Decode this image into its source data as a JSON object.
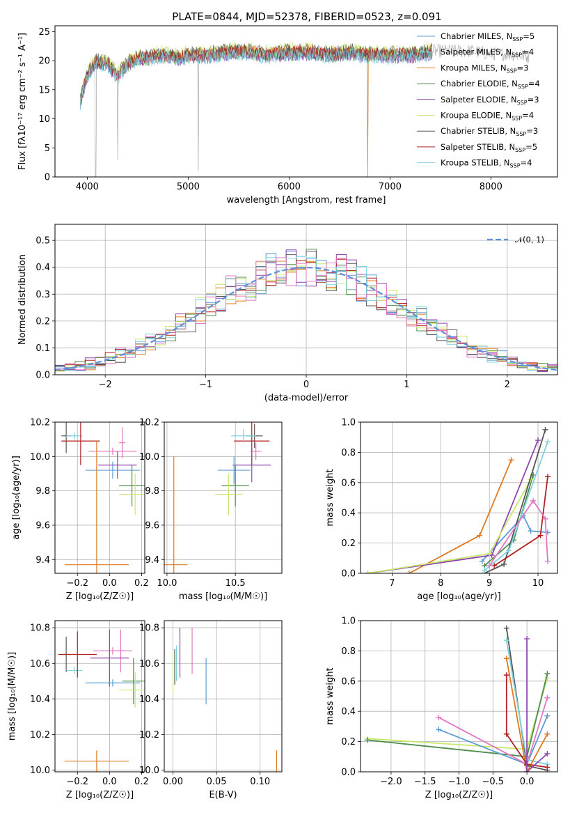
{
  "figure": {
    "title": "PLATE=0844, MJD=52378, FIBERID=0523, z=0.091"
  },
  "colors": [
    "#5b9bd5",
    "#e07a1f",
    "#4c8c4c",
    "#8e44ad",
    "#c7e86a",
    "#555555",
    "#b22222",
    "#7fd3de",
    "#e377c2"
  ],
  "charts": {
    "spectrum": {
      "type": "line",
      "xlabel": "wavelength [Angstrom, rest frame]",
      "ylabel": "Flux [fλ10⁻¹⁷ erg cm⁻² s⁻¹ A⁻¹]",
      "xlim": [
        3680,
        8660
      ],
      "ylim": [
        0,
        26
      ],
      "xticks": [
        4000,
        5000,
        6000,
        7000,
        8000
      ],
      "yticks": [
        0,
        5,
        10,
        15,
        20,
        25
      ],
      "grid": false,
      "legend": "upper-right",
      "data_x": [
        3930,
        3960,
        4000,
        4050,
        4100,
        4200,
        4300,
        4400,
        4500,
        4600,
        4700,
        4800,
        4900,
        5000,
        5200,
        5400,
        5600,
        5800,
        6000,
        6200,
        6400,
        6600,
        6800,
        7000,
        7200,
        7400,
        7600,
        7800,
        8000,
        8200,
        8400
      ],
      "data_y": [
        13,
        15,
        17.5,
        19,
        20,
        19.5,
        17.5,
        19.5,
        20.5,
        20.5,
        21,
        21,
        20.5,
        21,
        21,
        21.5,
        21.5,
        21,
        21.5,
        21.5,
        21,
        21.5,
        21,
        21,
        21,
        21.5,
        21.5,
        21.5,
        21,
        21,
        20.5
      ],
      "legend_entries": [
        {
          "label": "Chabrier MILES, N",
          "sub": "SSP",
          "suffix": "=5",
          "color": "#5b9bd5"
        },
        {
          "label": "Salpeter MILES, N",
          "sub": "SSP",
          "suffix": "=4",
          "color": "#7fd3de"
        },
        {
          "label": "Kroupa MILES, N",
          "sub": "SSP",
          "suffix": "=3",
          "color": "#e07a1f"
        },
        {
          "label": "Chabrier ELODIE, N",
          "sub": "SSP",
          "suffix": "=4",
          "color": "#4c8c4c"
        },
        {
          "label": "Salpeter ELODIE, N",
          "sub": "SSP",
          "suffix": "=3",
          "color": "#8e44ad"
        },
        {
          "label": "Kroupa ELODIE, N",
          "sub": "SSP",
          "suffix": "=4",
          "color": "#c7e86a"
        },
        {
          "label": "Chabrier STELIB, N",
          "sub": "SSP",
          "suffix": "=3",
          "color": "#555555"
        },
        {
          "label": "Salpeter STELIB, N",
          "sub": "SSP",
          "suffix": "=5",
          "color": "#b22222"
        },
        {
          "label": "Kroupa STELIB, N",
          "sub": "SSP",
          "suffix": "=4",
          "color": "#7fd3de"
        }
      ]
    },
    "residuals": {
      "type": "step-histogram",
      "xlabel": "(data-model)/error",
      "ylabel": "Normed distribution",
      "xlim": [
        -2.5,
        2.5
      ],
      "ylim": [
        0,
        0.56
      ],
      "xticks": [
        -2,
        -1,
        0,
        1,
        2
      ],
      "xtick_labels": [
        "−2",
        "−1",
        "0",
        "1",
        "2"
      ],
      "yticks": [
        0,
        0.1,
        0.2,
        0.3,
        0.4,
        0.5
      ],
      "ytick_labels": [
        "0.0",
        "0.1",
        "0.2",
        "0.3",
        "0.4",
        "0.5"
      ],
      "grid": true,
      "legend_label": "𝒩(0, 1)",
      "gaussian": {
        "mu": 0,
        "sigma": 1
      },
      "bin_width": 0.1,
      "bin_start": -2.5
    },
    "age_vs_Z": {
      "type": "errorbar",
      "xlabel": "Z [log₁₀(Z/Z☉)]",
      "ylabel": "age  [log₁₀(age/yr)]",
      "xlim": [
        -0.34,
        0.22
      ],
      "ylim": [
        9.32,
        10.2
      ],
      "xticks": [
        -0.2,
        0.0,
        0.2
      ],
      "xtick_labels": [
        "−0.2",
        "0.0",
        "0.2"
      ],
      "yticks": [
        9.4,
        9.6,
        9.8,
        10.0,
        10.2
      ],
      "ytick_labels": [
        "9.4",
        "9.6",
        "9.8",
        "10.0",
        "10.2"
      ],
      "grid": true,
      "points": [
        {
          "x": -0.27,
          "y": 10.12,
          "xerr": 0.03,
          "yerr": 0.1,
          "color": "#555555"
        },
        {
          "x": -0.22,
          "y": 10.12,
          "xerr": 0.05,
          "yerr": 0.02,
          "color": "#7fd3de"
        },
        {
          "x": -0.18,
          "y": 10.09,
          "xerr": 0.12,
          "yerr": 0.14,
          "color": "#b22222"
        },
        {
          "x": 0.08,
          "y": 10.08,
          "xerr": 0.02,
          "yerr": 0.09,
          "color": "#e377c2"
        },
        {
          "x": 0.02,
          "y": 10.03,
          "xerr": 0.15,
          "yerr": 0.02,
          "color": "#e377c2"
        },
        {
          "x": 0.05,
          "y": 9.95,
          "xerr": 0.12,
          "yerr": 0.08,
          "color": "#8e44ad"
        },
        {
          "x": 0.02,
          "y": 9.92,
          "xerr": 0.17,
          "yerr": 0.05,
          "color": "#5b9bd5"
        },
        {
          "x": 0.14,
          "y": 9.83,
          "xerr": 0.08,
          "yerr": 0.12,
          "color": "#4c8c4c"
        },
        {
          "x": 0.16,
          "y": 9.78,
          "xerr": 0.1,
          "yerr": 0.12,
          "color": "#c7e86a"
        },
        {
          "x": -0.08,
          "y": 9.37,
          "xerr": 0.2,
          "yerr": 0.72,
          "color": "#e07a1f"
        }
      ]
    },
    "age_vs_mass": {
      "type": "errorbar",
      "xlabel": "mass [log₁₀(M/M☉)]",
      "ylabel": "",
      "xlim": [
        9.98,
        10.84
      ],
      "ylim": [
        9.32,
        10.2
      ],
      "xticks": [
        10.0,
        10.5
      ],
      "xtick_labels": [
        "10.0",
        "10.5"
      ],
      "yticks": [
        9.4,
        9.6,
        9.8,
        10.0,
        10.2
      ],
      "ytick_labels": [
        "9.4",
        "9.6",
        "9.8",
        "10.0",
        "10.2"
      ],
      "grid": true,
      "points": [
        {
          "x": 10.05,
          "y": 9.37,
          "xerr": 0.1,
          "yerr": 0.63,
          "color": "#e07a1f"
        },
        {
          "x": 10.64,
          "y": 10.12,
          "xerr": 0.06,
          "yerr": 0.07,
          "color": "#555555"
        },
        {
          "x": 10.62,
          "y": 10.09,
          "xerr": 0.13,
          "yerr": 0.14,
          "color": "#b22222"
        },
        {
          "x": 10.56,
          "y": 10.12,
          "xerr": 0.09,
          "yerr": 0.04,
          "color": "#7fd3de"
        },
        {
          "x": 10.65,
          "y": 10.03,
          "xerr": 0.04,
          "yerr": 0.05,
          "color": "#e377c2"
        },
        {
          "x": 10.62,
          "y": 9.95,
          "xerr": 0.14,
          "yerr": 0.1,
          "color": "#8e44ad"
        },
        {
          "x": 10.49,
          "y": 9.92,
          "xerr": 0.12,
          "yerr": 0.08,
          "color": "#5b9bd5"
        },
        {
          "x": 10.5,
          "y": 9.83,
          "xerr": 0.1,
          "yerr": 0.12,
          "color": "#4c8c4c"
        },
        {
          "x": 10.45,
          "y": 9.78,
          "xerr": 0.1,
          "yerr": 0.12,
          "color": "#c7e86a"
        }
      ]
    },
    "weights_vs_age": {
      "type": "line",
      "xlabel": "age  [log₁₀(age/yr)]",
      "ylabel": "mass weight",
      "xlim": [
        6.35,
        10.4
      ],
      "ylim": [
        0,
        1
      ],
      "xticks": [
        7,
        8,
        9,
        10
      ],
      "yticks": [
        0,
        0.2,
        0.4,
        0.6,
        0.8,
        1.0
      ],
      "ytick_labels": [
        "0.0",
        "0.2",
        "0.4",
        "0.6",
        "0.8",
        "1.0"
      ],
      "grid": true,
      "series": [
        {
          "color": "#e07a1f",
          "x": [
            7.35,
            8.8,
            9.45
          ],
          "y": [
            0.0,
            0.25,
            0.75
          ]
        },
        {
          "color": "#5b9bd5",
          "x": [
            8.85,
            9.7,
            9.85,
            10.2
          ],
          "y": [
            0.08,
            0.38,
            0.28,
            0.27
          ]
        },
        {
          "color": "#4c8c4c",
          "x": [
            8.9,
            9.5,
            9.9
          ],
          "y": [
            0.05,
            0.22,
            0.65
          ]
        },
        {
          "color": "#8e44ad",
          "x": [
            6.5,
            9.05,
            10.0
          ],
          "y": [
            0.0,
            0.12,
            0.88
          ]
        },
        {
          "color": "#c7e86a",
          "x": [
            6.5,
            9.0,
            9.85
          ],
          "y": [
            0.0,
            0.13,
            0.62
          ]
        },
        {
          "color": "#555555",
          "x": [
            8.9,
            9.3,
            10.15
          ],
          "y": [
            0.0,
            0.06,
            0.95
          ]
        },
        {
          "color": "#b22222",
          "x": [
            9.1,
            10.05,
            10.2
          ],
          "y": [
            0.05,
            0.25,
            0.64
          ]
        },
        {
          "color": "#7fd3de",
          "x": [
            8.9,
            9.4,
            10.2
          ],
          "y": [
            0.02,
            0.15,
            0.87
          ]
        },
        {
          "color": "#e377c2",
          "x": [
            9.0,
            9.9,
            10.15,
            10.2
          ],
          "y": [
            0.05,
            0.48,
            0.36,
            0.08
          ]
        }
      ]
    },
    "mass_vs_Z": {
      "type": "errorbar",
      "xlabel": "Z [log₁₀(Z/Z☉)]",
      "ylabel": "mass [log₁₀(M/M☉)]",
      "xlim": [
        -0.34,
        0.22
      ],
      "ylim": [
        9.99,
        10.84
      ],
      "xticks": [
        -0.2,
        0.0,
        0.2
      ],
      "xtick_labels": [
        "−0.2",
        "0.0",
        "0.2"
      ],
      "yticks": [
        10.0,
        10.2,
        10.4,
        10.6,
        10.8
      ],
      "ytick_labels": [
        "10.0",
        "10.2",
        "10.4",
        "10.6",
        "10.8"
      ],
      "grid": true,
      "points": [
        {
          "x": -0.27,
          "y": 10.65,
          "xerr": 0.03,
          "yerr": 0.1,
          "color": "#555555"
        },
        {
          "x": -0.22,
          "y": 10.56,
          "xerr": 0.05,
          "yerr": 0.02,
          "color": "#7fd3de"
        },
        {
          "x": -0.2,
          "y": 10.65,
          "xerr": 0.12,
          "yerr": 0.13,
          "color": "#b22222"
        },
        {
          "x": 0.07,
          "y": 10.67,
          "xerr": 0.02,
          "yerr": 0.12,
          "color": "#e377c2"
        },
        {
          "x": 0.02,
          "y": 10.67,
          "xerr": 0.12,
          "yerr": 0.02,
          "color": "#e377c2"
        },
        {
          "x": 0.0,
          "y": 10.63,
          "xerr": 0.12,
          "yerr": 0.16,
          "color": "#8e44ad"
        },
        {
          "x": 0.02,
          "y": 10.49,
          "xerr": 0.17,
          "yerr": 0.02,
          "color": "#5b9bd5"
        },
        {
          "x": 0.15,
          "y": 10.5,
          "xerr": 0.07,
          "yerr": 0.13,
          "color": "#4c8c4c"
        },
        {
          "x": 0.16,
          "y": 10.45,
          "xerr": 0.1,
          "yerr": 0.1,
          "color": "#c7e86a"
        },
        {
          "x": -0.08,
          "y": 10.05,
          "xerr": 0.2,
          "yerr": 0.06,
          "color": "#e07a1f"
        }
      ]
    },
    "mass_vs_EBV": {
      "type": "errorbar",
      "xlabel": "E(B-V)",
      "ylabel": "",
      "xlim": [
        -0.01,
        0.125
      ],
      "ylim": [
        9.99,
        10.84
      ],
      "xticks": [
        0.0,
        0.05,
        0.1
      ],
      "xtick_labels": [
        "0.00",
        "0.05",
        "0.10"
      ],
      "yticks": [
        10.0,
        10.2,
        10.4,
        10.6,
        10.8
      ],
      "ytick_labels": [
        "10.0",
        "10.2",
        "10.4",
        "10.6",
        "10.8"
      ],
      "grid": true,
      "points": [
        {
          "x": 0.0,
          "y": 10.55,
          "xerr": 0.0,
          "yerr": 0.12,
          "color": "#c7e86a"
        },
        {
          "x": 0.002,
          "y": 10.58,
          "xerr": 0.0,
          "yerr": 0.1,
          "color": "#555555"
        },
        {
          "x": 0.004,
          "y": 10.6,
          "xerr": 0.0,
          "yerr": 0.1,
          "color": "#7fd3de"
        },
        {
          "x": 0.008,
          "y": 10.66,
          "xerr": 0.0,
          "yerr": 0.14,
          "color": "#8e44ad"
        },
        {
          "x": 0.022,
          "y": 10.67,
          "xerr": 0.0,
          "yerr": 0.13,
          "color": "#e377c2"
        },
        {
          "x": 0.038,
          "y": 10.5,
          "xerr": 0.0,
          "yerr": 0.13,
          "color": "#5b9bd5"
        },
        {
          "x": 0.119,
          "y": 10.05,
          "xerr": 0.0,
          "yerr": 0.06,
          "color": "#e07a1f"
        }
      ]
    },
    "weights_vs_Z": {
      "type": "line",
      "xlabel": "Z [log₁₀(Z/Z☉)]",
      "ylabel": "mass weight",
      "xlim": [
        -2.45,
        0.45
      ],
      "ylim": [
        0,
        1
      ],
      "xticks": [
        -2.0,
        -1.5,
        -1.0,
        -0.5,
        0.0
      ],
      "xtick_labels": [
        "−2.0",
        "−1.5",
        "−1.0",
        "−0.5",
        "0.0"
      ],
      "yticks": [
        0,
        0.2,
        0.4,
        0.6,
        0.8,
        1.0
      ],
      "ytick_labels": [
        "0.0",
        "0.2",
        "0.4",
        "0.6",
        "0.8",
        "1.0"
      ],
      "grid": true,
      "series": [
        {
          "color": "#c7e86a",
          "x": [
            -2.35,
            0.0,
            0.3
          ],
          "y": [
            0.22,
            0.15,
            0.62
          ]
        },
        {
          "color": "#4c8c4c",
          "x": [
            -2.35,
            0.0,
            0.3
          ],
          "y": [
            0.21,
            0.1,
            0.65
          ]
        },
        {
          "color": "#5b9bd5",
          "x": [
            -1.3,
            0.0,
            0.3
          ],
          "y": [
            0.28,
            0.05,
            0.37
          ]
        },
        {
          "color": "#e377c2",
          "x": [
            -1.3,
            0.0,
            0.3
          ],
          "y": [
            0.36,
            0.05,
            0.49
          ]
        },
        {
          "color": "#555555",
          "x": [
            -0.3,
            0.0,
            0.3
          ],
          "y": [
            0.95,
            0.04,
            0.01
          ]
        },
        {
          "color": "#7fd3de",
          "x": [
            -0.3,
            0.0,
            0.3
          ],
          "y": [
            0.87,
            0.08,
            0.05
          ]
        },
        {
          "color": "#e07a1f",
          "x": [
            -0.3,
            0.0,
            0.3
          ],
          "y": [
            0.75,
            0.0,
            0.25
          ]
        },
        {
          "color": "#b22222",
          "x": [
            -0.3,
            -0.3,
            0.0,
            0.3
          ],
          "y": [
            0.64,
            0.25,
            0.05,
            0.03
          ]
        },
        {
          "color": "#8e44ad",
          "x": [
            0.0,
            0.0,
            0.3
          ],
          "y": [
            0.88,
            0.0,
            0.12
          ]
        }
      ]
    }
  }
}
